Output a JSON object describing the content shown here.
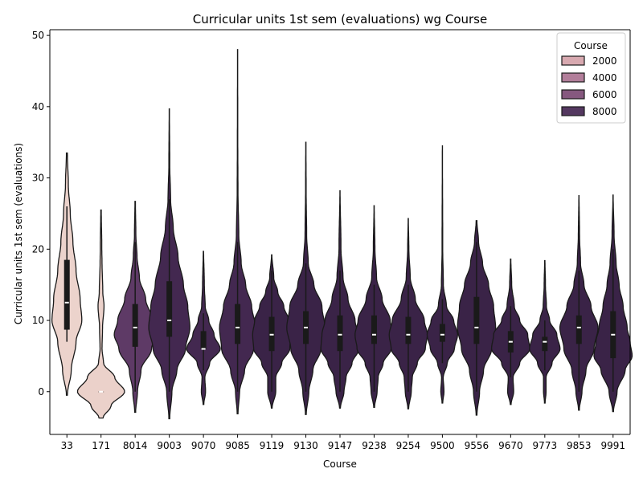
{
  "chart_data": {
    "type": "violin",
    "title": "Curricular units 1st sem (evaluations) wg Course",
    "xlabel": "Course",
    "ylabel": "Curricular units 1st sem (evaluations)",
    "ylim": [
      -6,
      50.8
    ],
    "yticks": [
      0,
      10,
      20,
      30,
      40,
      50
    ],
    "categories": [
      "33",
      "171",
      "8014",
      "9003",
      "9070",
      "9085",
      "9119",
      "9130",
      "9147",
      "9238",
      "9254",
      "9500",
      "9556",
      "9670",
      "9773",
      "9853",
      "9991"
    ],
    "series": [
      {
        "category": "33",
        "hue": 33,
        "color": "#ecd3cc",
        "median": 12.5,
        "q1": 8.7,
        "q3": 18.5,
        "whisker_low": 7,
        "whisker_high": 26,
        "kde_min": -0.5,
        "kde_max": 33.5,
        "max_half_width": 30,
        "density": [
          [
            -0.5,
            0.02
          ],
          [
            3,
            0.18
          ],
          [
            7,
            0.38
          ],
          [
            10,
            0.62
          ],
          [
            13,
            0.55
          ],
          [
            17,
            0.38
          ],
          [
            21,
            0.25
          ],
          [
            25,
            0.14
          ],
          [
            29,
            0.06
          ],
          [
            33.5,
            0.02
          ]
        ]
      },
      {
        "category": "171",
        "hue": 171,
        "color": "#ebd1ca",
        "median": 0,
        "q1": 0,
        "q3": 0,
        "whisker_low": 0,
        "whisker_high": 0,
        "kde_min": -3.7,
        "kde_max": 25.5,
        "max_half_width": 31,
        "density": [
          [
            -3.7,
            0.08
          ],
          [
            -2,
            0.4
          ],
          [
            0,
            0.95
          ],
          [
            2,
            0.55
          ],
          [
            4,
            0.1
          ],
          [
            6,
            0.04
          ],
          [
            9,
            0.06
          ],
          [
            12,
            0.12
          ],
          [
            14,
            0.07
          ],
          [
            18,
            0.04
          ],
          [
            20,
            0.03
          ],
          [
            25.5,
            0.01
          ]
        ]
      },
      {
        "category": "8014",
        "hue": 8014,
        "color": "#5e3a66",
        "median": 9,
        "q1": 6.3,
        "q3": 12.3,
        "whisker_low": 0,
        "whisker_high": 21,
        "kde_min": -2.9,
        "kde_max": 26.7,
        "max_half_width": 29,
        "density": [
          [
            -2.9,
            0.02
          ],
          [
            0,
            0.1
          ],
          [
            3,
            0.25
          ],
          [
            6,
            0.7
          ],
          [
            8,
            0.9
          ],
          [
            10,
            0.75
          ],
          [
            13,
            0.45
          ],
          [
            16,
            0.18
          ],
          [
            19,
            0.08
          ],
          [
            22,
            0.03
          ],
          [
            26.7,
            0.01
          ]
        ]
      },
      {
        "category": "9003",
        "hue": 9003,
        "color": "#432850",
        "median": 10,
        "q1": 7.7,
        "q3": 15.5,
        "whisker_low": 0,
        "whisker_high": 27,
        "kde_min": -3.8,
        "kde_max": 39.7,
        "max_half_width": 27,
        "density": [
          [
            -3.8,
            0.02
          ],
          [
            0,
            0.12
          ],
          [
            3,
            0.35
          ],
          [
            6,
            0.75
          ],
          [
            9,
            0.95
          ],
          [
            12,
            0.85
          ],
          [
            15,
            0.65
          ],
          [
            19,
            0.4
          ],
          [
            23,
            0.18
          ],
          [
            27,
            0.06
          ],
          [
            32,
            0.02
          ],
          [
            39.7,
            0.005
          ]
        ]
      },
      {
        "category": "9070",
        "hue": 9070,
        "color": "#432850",
        "median": 6,
        "q1": 6,
        "q3": 8.5,
        "whisker_low": 3,
        "whisker_high": 11,
        "kde_min": -1.8,
        "kde_max": 19.7,
        "max_half_width": 22,
        "density": [
          [
            -1.8,
            0.02
          ],
          [
            0,
            0.12
          ],
          [
            2,
            0.08
          ],
          [
            4,
            0.35
          ],
          [
            6,
            0.95
          ],
          [
            8,
            0.6
          ],
          [
            10,
            0.3
          ],
          [
            12,
            0.1
          ],
          [
            15,
            0.05
          ],
          [
            19.7,
            0.01
          ]
        ]
      },
      {
        "category": "9085",
        "hue": 9085,
        "color": "#432850",
        "median": 9,
        "q1": 6.7,
        "q3": 12.3,
        "whisker_low": 0,
        "whisker_high": 21,
        "kde_min": -3.1,
        "kde_max": 48,
        "max_half_width": 25,
        "density": [
          [
            -3.1,
            0.02
          ],
          [
            0,
            0.1
          ],
          [
            3,
            0.35
          ],
          [
            6,
            0.8
          ],
          [
            9,
            0.9
          ],
          [
            12,
            0.7
          ],
          [
            15,
            0.4
          ],
          [
            18,
            0.18
          ],
          [
            22,
            0.06
          ],
          [
            28,
            0.02
          ],
          [
            35,
            0.01
          ],
          [
            48,
            0.003
          ]
        ]
      },
      {
        "category": "9119",
        "hue": 9119,
        "color": "#3a2347",
        "median": 8,
        "q1": 5.7,
        "q3": 10.5,
        "whisker_low": 0,
        "whisker_high": 17,
        "kde_min": -2.3,
        "kde_max": 19.2,
        "max_half_width": 25,
        "density": [
          [
            -2.3,
            0.02
          ],
          [
            0,
            0.2
          ],
          [
            2,
            0.2
          ],
          [
            4,
            0.5
          ],
          [
            6,
            0.9
          ],
          [
            8,
            0.95
          ],
          [
            10,
            0.85
          ],
          [
            12,
            0.6
          ],
          [
            14,
            0.3
          ],
          [
            16,
            0.1
          ],
          [
            19.2,
            0.01
          ]
        ]
      },
      {
        "category": "9130",
        "hue": 9130,
        "color": "#3a2347",
        "median": 9,
        "q1": 6.7,
        "q3": 11.3,
        "whisker_low": 0,
        "whisker_high": 18,
        "kde_min": -3.2,
        "kde_max": 35,
        "max_half_width": 25,
        "density": [
          [
            -3.2,
            0.02
          ],
          [
            0,
            0.15
          ],
          [
            3,
            0.35
          ],
          [
            6,
            0.75
          ],
          [
            9,
            0.95
          ],
          [
            12,
            0.8
          ],
          [
            15,
            0.4
          ],
          [
            18,
            0.12
          ],
          [
            22,
            0.04
          ],
          [
            28,
            0.015
          ],
          [
            35,
            0.005
          ]
        ]
      },
      {
        "category": "9147",
        "hue": 9147,
        "color": "#3a2347",
        "median": 8,
        "q1": 5.7,
        "q3": 10.7,
        "whisker_low": 0,
        "whisker_high": 17,
        "kde_min": -2.3,
        "kde_max": 28.2,
        "max_half_width": 25,
        "density": [
          [
            -2.3,
            0.02
          ],
          [
            0,
            0.2
          ],
          [
            2,
            0.3
          ],
          [
            4,
            0.6
          ],
          [
            6,
            0.95
          ],
          [
            8,
            0.9
          ],
          [
            10,
            0.75
          ],
          [
            13,
            0.4
          ],
          [
            16,
            0.15
          ],
          [
            20,
            0.05
          ],
          [
            28.2,
            0.005
          ]
        ]
      },
      {
        "category": "9238",
        "hue": 9238,
        "color": "#3a2347",
        "median": 8,
        "q1": 6.7,
        "q3": 10.7,
        "whisker_low": 0,
        "whisker_high": 15,
        "kde_min": -2.2,
        "kde_max": 26.1,
        "max_half_width": 25,
        "density": [
          [
            -2.2,
            0.02
          ],
          [
            0,
            0.15
          ],
          [
            2,
            0.2
          ],
          [
            4,
            0.45
          ],
          [
            6,
            0.85
          ],
          [
            8,
            0.95
          ],
          [
            10,
            0.8
          ],
          [
            13,
            0.4
          ],
          [
            16,
            0.12
          ],
          [
            20,
            0.04
          ],
          [
            26.1,
            0.005
          ]
        ]
      },
      {
        "category": "9254",
        "hue": 9254,
        "color": "#3a2347",
        "median": 8,
        "q1": 6.7,
        "q3": 10.5,
        "whisker_low": 0,
        "whisker_high": 15,
        "kde_min": -2.4,
        "kde_max": 24.3,
        "max_half_width": 25,
        "density": [
          [
            -2.4,
            0.02
          ],
          [
            0,
            0.15
          ],
          [
            2,
            0.2
          ],
          [
            4,
            0.45
          ],
          [
            6,
            0.85
          ],
          [
            8,
            0.95
          ],
          [
            10,
            0.8
          ],
          [
            13,
            0.35
          ],
          [
            16,
            0.1
          ],
          [
            20,
            0.03
          ],
          [
            24.3,
            0.005
          ]
        ]
      },
      {
        "category": "9500",
        "hue": 9500,
        "color": "#3a2347",
        "median": 8,
        "q1": 7,
        "q3": 9.5,
        "whisker_low": 4,
        "whisker_high": 13,
        "kde_min": -1.6,
        "kde_max": 34.5,
        "max_half_width": 20,
        "density": [
          [
            -1.6,
            0.02
          ],
          [
            0,
            0.1
          ],
          [
            2,
            0.05
          ],
          [
            4,
            0.3
          ],
          [
            6,
            0.75
          ],
          [
            8,
            0.95
          ],
          [
            10,
            0.7
          ],
          [
            12,
            0.25
          ],
          [
            15,
            0.06
          ],
          [
            20,
            0.02
          ],
          [
            34.5,
            0.003
          ]
        ]
      },
      {
        "category": "9556",
        "hue": 9556,
        "color": "#3a2347",
        "median": 9,
        "q1": 6.7,
        "q3": 13.3,
        "whisker_low": 0,
        "whisker_high": 21,
        "kde_min": -3.3,
        "kde_max": 24,
        "max_half_width": 25,
        "density": [
          [
            -3.3,
            0.02
          ],
          [
            0,
            0.15
          ],
          [
            3,
            0.35
          ],
          [
            6,
            0.75
          ],
          [
            9,
            0.95
          ],
          [
            12,
            0.85
          ],
          [
            15,
            0.6
          ],
          [
            18,
            0.3
          ],
          [
            21,
            0.1
          ],
          [
            24,
            0.02
          ]
        ]
      },
      {
        "category": "9670",
        "hue": 9670,
        "color": "#3a2347",
        "median": 7,
        "q1": 5.5,
        "q3": 8.5,
        "whisker_low": 2,
        "whisker_high": 12,
        "kde_min": -1.8,
        "kde_max": 18.6,
        "max_half_width": 25,
        "density": [
          [
            -1.8,
            0.02
          ],
          [
            0,
            0.15
          ],
          [
            2,
            0.12
          ],
          [
            4,
            0.45
          ],
          [
            6,
            0.95
          ],
          [
            8,
            0.85
          ],
          [
            10,
            0.45
          ],
          [
            12,
            0.18
          ],
          [
            15,
            0.05
          ],
          [
            18.6,
            0.01
          ]
        ]
      },
      {
        "category": "9773",
        "hue": 9773,
        "color": "#3a2347",
        "median": 7,
        "q1": 5.7,
        "q3": 7.7,
        "whisker_low": 3,
        "whisker_high": 10,
        "kde_min": -1.6,
        "kde_max": 18.4,
        "max_half_width": 20,
        "density": [
          [
            -1.6,
            0.02
          ],
          [
            0,
            0.08
          ],
          [
            2,
            0.08
          ],
          [
            4,
            0.45
          ],
          [
            6,
            0.95
          ],
          [
            8,
            0.75
          ],
          [
            10,
            0.3
          ],
          [
            12,
            0.1
          ],
          [
            15,
            0.04
          ],
          [
            18.4,
            0.01
          ]
        ]
      },
      {
        "category": "9853",
        "hue": 9853,
        "color": "#3a2347",
        "median": 9,
        "q1": 6.7,
        "q3": 10.7,
        "whisker_low": 0,
        "whisker_high": 17,
        "kde_min": -2.6,
        "kde_max": 27.5,
        "max_half_width": 25,
        "density": [
          [
            -2.6,
            0.02
          ],
          [
            0,
            0.15
          ],
          [
            3,
            0.35
          ],
          [
            6,
            0.75
          ],
          [
            9,
            0.95
          ],
          [
            12,
            0.6
          ],
          [
            15,
            0.25
          ],
          [
            18,
            0.08
          ],
          [
            22,
            0.03
          ],
          [
            27.5,
            0.005
          ]
        ]
      },
      {
        "category": "9991",
        "hue": 9991,
        "color": "#3a2347",
        "median": 8,
        "q1": 4.7,
        "q3": 11.3,
        "whisker_low": 0,
        "whisker_high": 20,
        "kde_min": -2.8,
        "kde_max": 27.6,
        "max_half_width": 25,
        "density": [
          [
            -2.8,
            0.02
          ],
          [
            0,
            0.2
          ],
          [
            3,
            0.6
          ],
          [
            5,
            0.95
          ],
          [
            7,
            0.85
          ],
          [
            9,
            0.7
          ],
          [
            12,
            0.5
          ],
          [
            15,
            0.3
          ],
          [
            18,
            0.15
          ],
          [
            22,
            0.05
          ],
          [
            27.6,
            0.005
          ]
        ]
      }
    ],
    "legend": {
      "title": "Course",
      "placement": "top-right",
      "entries": [
        {
          "label": "2000",
          "color": "#d8a9b0"
        },
        {
          "label": "4000",
          "color": "#b27e9a"
        },
        {
          "label": "6000",
          "color": "#86587f"
        },
        {
          "label": "8000",
          "color": "#543860"
        }
      ]
    },
    "grid": false
  }
}
